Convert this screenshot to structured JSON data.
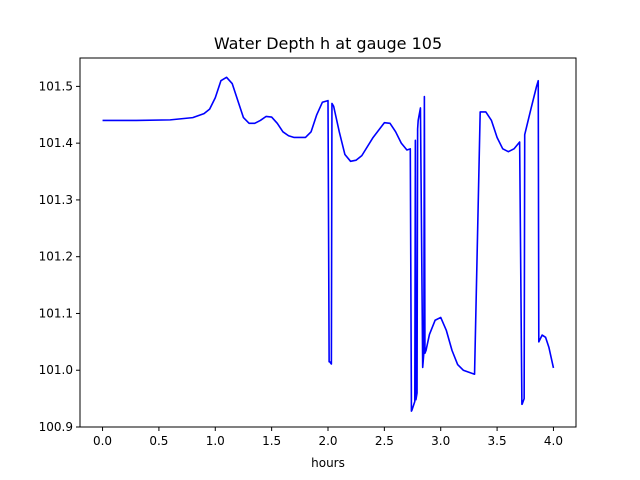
{
  "chart_data": {
    "type": "line",
    "title": "Water Depth h at gauge 105",
    "xlabel": "hours",
    "ylabel": "",
    "xlim": [
      -0.2,
      4.2
    ],
    "ylim": [
      100.9,
      101.55
    ],
    "xticks": [
      0.0,
      0.5,
      1.0,
      1.5,
      2.0,
      2.5,
      3.0,
      3.5,
      4.0
    ],
    "xtick_labels": [
      "0.0",
      "0.5",
      "1.0",
      "1.5",
      "2.0",
      "2.5",
      "3.0",
      "3.5",
      "4.0"
    ],
    "yticks": [
      100.9,
      101.0,
      101.1,
      101.2,
      101.3,
      101.4,
      101.5
    ],
    "ytick_labels": [
      "100.9",
      "101.0",
      "101.1",
      "101.2",
      "101.3",
      "101.4",
      "101.5"
    ],
    "grid": false,
    "line_color": "#0000ff",
    "series": [
      {
        "x": [
          0.0,
          0.3,
          0.6,
          0.8,
          0.9,
          0.95,
          1.0,
          1.05,
          1.1,
          1.15,
          1.2,
          1.25,
          1.3,
          1.35,
          1.4,
          1.45,
          1.5,
          1.55,
          1.6,
          1.65,
          1.7,
          1.8,
          1.85,
          1.9,
          1.95,
          2.0,
          2.01,
          2.015,
          2.03,
          2.035,
          2.05,
          2.1,
          2.15,
          2.2,
          2.25,
          2.3,
          2.4,
          2.5,
          2.55,
          2.6,
          2.65,
          2.7,
          2.73,
          2.74,
          2.745,
          2.77,
          2.775,
          2.78,
          2.79,
          2.795,
          2.8,
          2.82,
          2.84,
          2.85,
          2.855,
          2.86,
          2.87,
          2.875,
          2.9,
          2.95,
          3.0,
          3.05,
          3.1,
          3.15,
          3.2,
          3.3,
          3.35,
          3.355,
          3.4,
          3.45,
          3.5,
          3.55,
          3.6,
          3.65,
          3.7,
          3.72,
          3.722,
          3.74,
          3.745,
          3.8,
          3.85,
          3.865,
          3.87,
          3.9,
          3.93,
          3.96,
          4.0
        ],
        "y": [
          101.44,
          101.44,
          101.441,
          101.445,
          101.452,
          101.46,
          101.48,
          101.51,
          101.516,
          101.505,
          101.475,
          101.445,
          101.435,
          101.435,
          101.44,
          101.447,
          101.446,
          101.435,
          101.42,
          101.413,
          101.41,
          101.41,
          101.42,
          101.45,
          101.472,
          101.475,
          101.015,
          101.015,
          101.011,
          101.47,
          101.465,
          101.42,
          101.38,
          101.368,
          101.37,
          101.378,
          101.41,
          101.436,
          101.435,
          101.42,
          101.4,
          101.388,
          101.39,
          100.928,
          100.93,
          100.945,
          101.405,
          100.948,
          100.96,
          101.425,
          101.44,
          101.462,
          101.005,
          101.03,
          101.482,
          101.03,
          101.035,
          101.04,
          101.063,
          101.088,
          101.093,
          101.07,
          101.035,
          101.01,
          101.0,
          100.993,
          101.455,
          101.455,
          101.455,
          101.44,
          101.41,
          101.39,
          101.385,
          101.39,
          101.402,
          100.94,
          100.94,
          100.95,
          101.415,
          101.46,
          101.5,
          101.51,
          101.05,
          101.062,
          101.058,
          101.04,
          101.004
        ]
      }
    ]
  }
}
